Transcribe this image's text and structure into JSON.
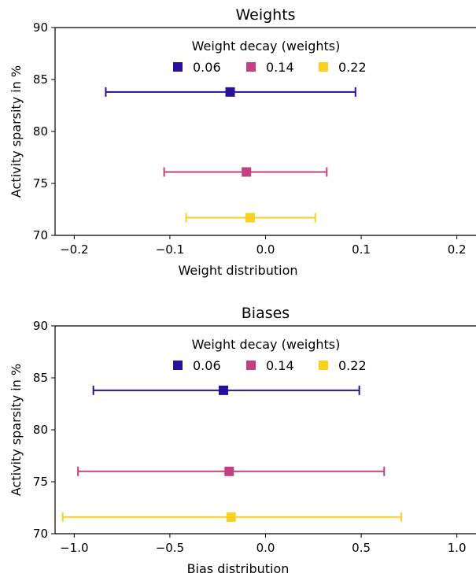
{
  "chart_data": [
    {
      "type": "scatter",
      "title": "Weights",
      "xlabel": "Weight distribution",
      "ylabel": "Activity sparsity in %",
      "xlim": [
        -0.22,
        0.22
      ],
      "ylim": [
        70,
        90
      ],
      "xticks": [
        -0.2,
        -0.1,
        0.0,
        0.1,
        0.2
      ],
      "xtick_labels": [
        "−0.2",
        "−0.1",
        "0.0",
        "0.1",
        "0.2"
      ],
      "yticks": [
        70,
        75,
        80,
        85,
        90
      ],
      "ytick_labels": [
        "70",
        "75",
        "80",
        "85",
        "90"
      ],
      "legend_title": "Weight decay (weights)",
      "legend_location": "top-center",
      "grid": false,
      "series": [
        {
          "name": "0.06",
          "color": "#2a0f9a",
          "x": -0.037,
          "y": 83.8,
          "xerr_low": -0.167,
          "xerr_high": 0.094
        },
        {
          "name": "0.14",
          "color": "#c4407f",
          "x": -0.02,
          "y": 76.1,
          "xerr_low": -0.106,
          "xerr_high": 0.064
        },
        {
          "name": "0.22",
          "color": "#f9cf21",
          "x": -0.016,
          "y": 71.7,
          "xerr_low": -0.083,
          "xerr_high": 0.052
        }
      ]
    },
    {
      "type": "scatter",
      "title": "Biases",
      "xlabel": "Bias distribution",
      "ylabel": "Activity sparsity in %",
      "xlim": [
        -1.1,
        1.1
      ],
      "ylim": [
        70,
        90
      ],
      "xticks": [
        -1.0,
        -0.5,
        0.0,
        0.5,
        1.0
      ],
      "xtick_labels": [
        "−1.0",
        "−0.5",
        "0.0",
        "0.5",
        "1.0"
      ],
      "yticks": [
        70,
        75,
        80,
        85,
        90
      ],
      "ytick_labels": [
        "70",
        "75",
        "80",
        "85",
        "90"
      ],
      "legend_title": "Weight decay (weights)",
      "legend_location": "top-center",
      "grid": false,
      "series": [
        {
          "name": "0.06",
          "color": "#2a0f9a",
          "x": -0.22,
          "y": 83.8,
          "xerr_low": -0.9,
          "xerr_high": 0.49
        },
        {
          "name": "0.14",
          "color": "#c4407f",
          "x": -0.19,
          "y": 76.0,
          "xerr_low": -0.98,
          "xerr_high": 0.62
        },
        {
          "name": "0.22",
          "color": "#f9cf21",
          "x": -0.18,
          "y": 71.6,
          "xerr_low": -1.06,
          "xerr_high": 0.71
        }
      ]
    }
  ]
}
